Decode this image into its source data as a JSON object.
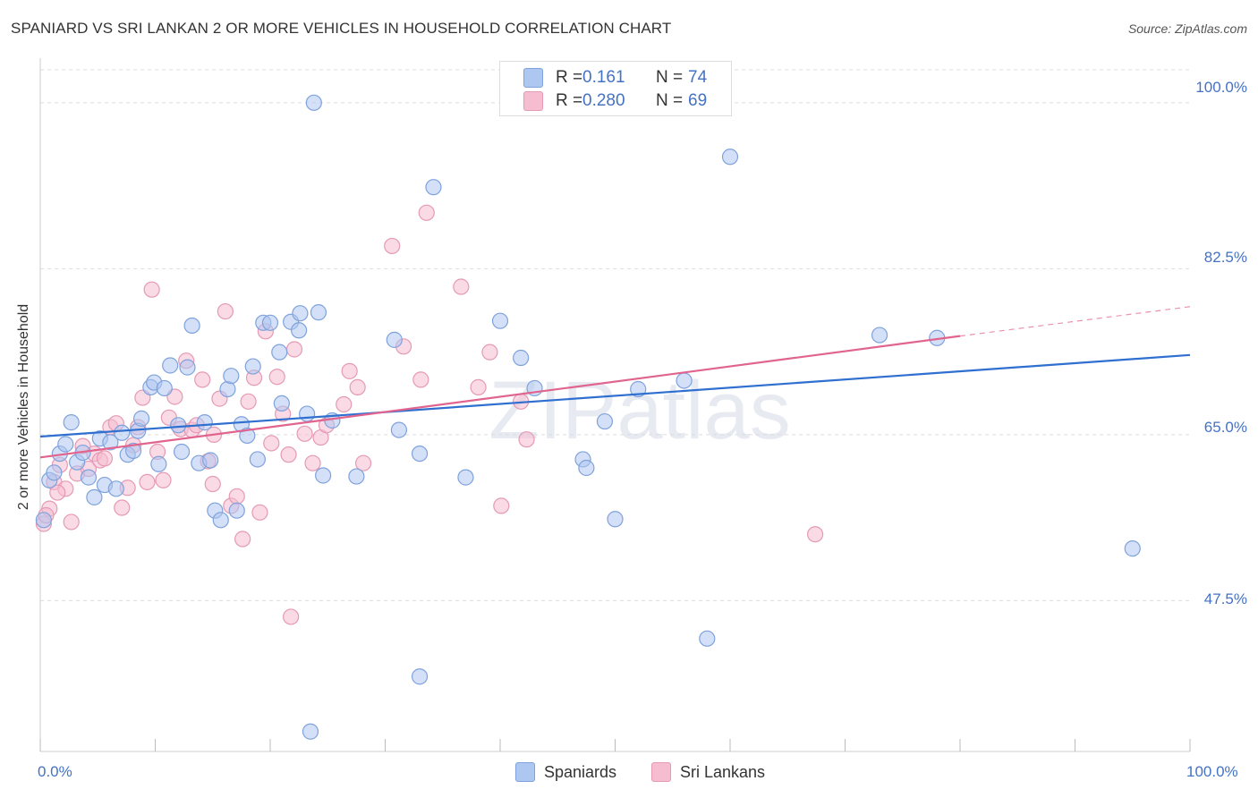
{
  "header": {
    "title": "SPANIARD VS SRI LANKAN 2 OR MORE VEHICLES IN HOUSEHOLD CORRELATION CHART",
    "source": "Source: ZipAtlas.com"
  },
  "legend": {
    "spaniards": {
      "r_label": "R =",
      "r_value": "0.161",
      "n_label": "N =",
      "n_value": "74"
    },
    "srilankans": {
      "r_label": "R =",
      "r_value": "0.280",
      "n_label": "N =",
      "n_value": "69"
    }
  },
  "bottom_legend": {
    "spaniards": "Spaniards",
    "srilankans": "Sri Lankans"
  },
  "watermark": "ZIPatlas",
  "colors": {
    "blue": "#4472c4",
    "blue_fill": "#aec7f0",
    "blue_line": "#2f6fd0",
    "pink": "#e07fa0",
    "pink_fill": "#f6bcd0",
    "pink_line": "#e0648e",
    "grid": "#dddddd"
  },
  "chart_data": {
    "type": "scatter",
    "title": "SPANIARD VS SRI LANKAN 2 OR MORE VEHICLES IN HOUSEHOLD CORRELATION CHART",
    "xlabel": "",
    "ylabel": "2 or more Vehicles in Household",
    "xlim": [
      0,
      100
    ],
    "ylim": [
      31.6,
      104.7
    ],
    "x_tick_labels": [
      "0.0%",
      "100.0%"
    ],
    "y_ticks": [
      47.5,
      65.0,
      82.5,
      100.0
    ],
    "y_tick_labels": [
      "47.5%",
      "65.0%",
      "82.5%",
      "100.0%"
    ],
    "grid": true,
    "legend_position": "top-center",
    "series": [
      {
        "name": "Spaniards",
        "r": 0.161,
        "n": 74,
        "trend": {
          "x": [
            0,
            100
          ],
          "y": [
            64.8,
            73.4
          ]
        },
        "points": [
          [
            0.3,
            56.0
          ],
          [
            0.8,
            60.2
          ],
          [
            1.2,
            61.0
          ],
          [
            1.7,
            63.0
          ],
          [
            2.2,
            64.0
          ],
          [
            2.7,
            66.3
          ],
          [
            3.2,
            62.1
          ],
          [
            3.7,
            63.1
          ],
          [
            4.2,
            60.5
          ],
          [
            4.7,
            58.4
          ],
          [
            5.2,
            64.6
          ],
          [
            5.6,
            59.7
          ],
          [
            6.1,
            64.2
          ],
          [
            6.6,
            59.3
          ],
          [
            7.1,
            65.2
          ],
          [
            7.6,
            62.9
          ],
          [
            8.1,
            63.3
          ],
          [
            8.5,
            65.4
          ],
          [
            8.8,
            66.7
          ],
          [
            9.6,
            70.0
          ],
          [
            9.9,
            70.5
          ],
          [
            10.3,
            61.9
          ],
          [
            10.8,
            69.9
          ],
          [
            11.3,
            72.3
          ],
          [
            12.0,
            66.0
          ],
          [
            12.3,
            63.2
          ],
          [
            12.8,
            72.1
          ],
          [
            13.2,
            76.5
          ],
          [
            13.8,
            62.0
          ],
          [
            14.3,
            66.3
          ],
          [
            14.8,
            62.3
          ],
          [
            15.2,
            57.0
          ],
          [
            15.7,
            56.0
          ],
          [
            16.3,
            69.8
          ],
          [
            16.6,
            71.2
          ],
          [
            17.1,
            57.0
          ],
          [
            17.5,
            66.1
          ],
          [
            18.0,
            64.9
          ],
          [
            18.5,
            72.2
          ],
          [
            18.9,
            62.4
          ],
          [
            19.4,
            76.8
          ],
          [
            20.0,
            76.8
          ],
          [
            20.8,
            73.7
          ],
          [
            21.0,
            68.3
          ],
          [
            21.8,
            76.9
          ],
          [
            22.5,
            76.0
          ],
          [
            22.6,
            77.8
          ],
          [
            23.2,
            67.2
          ],
          [
            24.6,
            60.7
          ],
          [
            23.8,
            100.0
          ],
          [
            24.2,
            77.9
          ],
          [
            25.4,
            66.5
          ],
          [
            27.5,
            60.6
          ],
          [
            30.8,
            75.0
          ],
          [
            31.2,
            65.5
          ],
          [
            33.0,
            63.0
          ],
          [
            34.2,
            91.1
          ],
          [
            37.0,
            60.5
          ],
          [
            40.0,
            77.0
          ],
          [
            41.8,
            73.1
          ],
          [
            43.0,
            69.9
          ],
          [
            47.2,
            62.4
          ],
          [
            47.5,
            61.5
          ],
          [
            49.1,
            66.4
          ],
          [
            50.0,
            56.1
          ],
          [
            52.0,
            69.8
          ],
          [
            56.0,
            70.7
          ],
          [
            60.0,
            94.3
          ],
          [
            73.0,
            75.5
          ],
          [
            78.0,
            75.2
          ],
          [
            95.0,
            53.0
          ],
          [
            58.0,
            43.5
          ],
          [
            33.0,
            39.5
          ],
          [
            23.5,
            33.7
          ]
        ]
      },
      {
        "name": "Sri Lankans",
        "r": 0.28,
        "n": 69,
        "trend": {
          "x": [
            0,
            80
          ],
          "y": [
            62.6,
            75.4
          ]
        },
        "trend_dashed": {
          "x": [
            80,
            100
          ],
          "y": [
            75.4,
            78.5
          ]
        },
        "points": [
          [
            0.3,
            55.6
          ],
          [
            0.8,
            57.2
          ],
          [
            1.2,
            60.0
          ],
          [
            1.7,
            61.8
          ],
          [
            2.2,
            59.3
          ],
          [
            2.7,
            55.8
          ],
          [
            3.2,
            60.9
          ],
          [
            3.7,
            63.8
          ],
          [
            4.2,
            61.4
          ],
          [
            4.7,
            63.0
          ],
          [
            5.2,
            62.3
          ],
          [
            5.6,
            62.5
          ],
          [
            6.1,
            65.8
          ],
          [
            6.6,
            66.2
          ],
          [
            7.1,
            57.3
          ],
          [
            7.6,
            59.4
          ],
          [
            8.1,
            63.9
          ],
          [
            8.5,
            65.8
          ],
          [
            8.9,
            68.9
          ],
          [
            9.3,
            60.0
          ],
          [
            9.7,
            80.3
          ],
          [
            10.2,
            63.2
          ],
          [
            10.7,
            60.2
          ],
          [
            11.2,
            66.8
          ],
          [
            11.7,
            69.0
          ],
          [
            12.2,
            65.6
          ],
          [
            12.7,
            72.8
          ],
          [
            13.2,
            65.5
          ],
          [
            13.6,
            66.0
          ],
          [
            14.1,
            70.8
          ],
          [
            14.6,
            62.2
          ],
          [
            15.1,
            65.0
          ],
          [
            15.6,
            68.8
          ],
          [
            16.1,
            78.0
          ],
          [
            16.6,
            57.5
          ],
          [
            17.1,
            58.5
          ],
          [
            17.6,
            54.0
          ],
          [
            18.1,
            68.5
          ],
          [
            18.6,
            71.0
          ],
          [
            19.1,
            56.8
          ],
          [
            19.6,
            75.9
          ],
          [
            20.1,
            64.1
          ],
          [
            20.6,
            71.1
          ],
          [
            21.1,
            67.2
          ],
          [
            21.6,
            62.9
          ],
          [
            22.1,
            74.0
          ],
          [
            23.0,
            65.1
          ],
          [
            23.7,
            62.0
          ],
          [
            24.4,
            64.7
          ],
          [
            24.9,
            66.0
          ],
          [
            26.4,
            68.2
          ],
          [
            26.9,
            71.7
          ],
          [
            27.6,
            70.0
          ],
          [
            28.1,
            62.0
          ],
          [
            30.6,
            84.9
          ],
          [
            31.6,
            74.3
          ],
          [
            33.1,
            70.8
          ],
          [
            33.6,
            88.4
          ],
          [
            36.6,
            80.6
          ],
          [
            38.1,
            70.0
          ],
          [
            39.1,
            73.7
          ],
          [
            40.1,
            57.5
          ],
          [
            41.8,
            68.5
          ],
          [
            42.3,
            64.5
          ],
          [
            67.4,
            54.5
          ],
          [
            21.8,
            45.8
          ],
          [
            0.5,
            56.5
          ],
          [
            1.5,
            58.9
          ],
          [
            15.0,
            59.8
          ]
        ]
      }
    ]
  }
}
